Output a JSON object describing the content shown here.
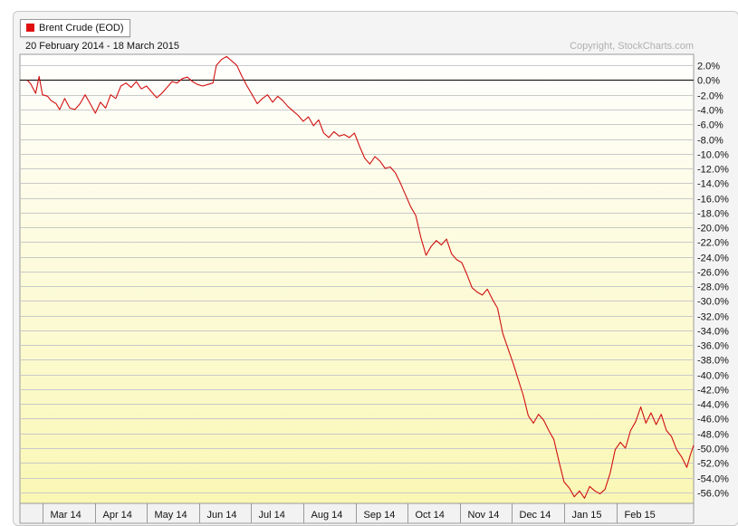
{
  "legend": {
    "label": "Brent Crude (EOD)",
    "color": "#e01010"
  },
  "header": {
    "date_range": "20 February 2014 - 18 March 2015",
    "copyright": "Copyright, StockCharts.com"
  },
  "chart_data": {
    "type": "line",
    "title": "",
    "xlabel": "",
    "ylabel": "",
    "ylim": [
      -57.5,
      3.5
    ],
    "y_ticks": [
      2,
      0,
      -2,
      -4,
      -6,
      -8,
      -10,
      -12,
      -14,
      -16,
      -18,
      -20,
      -22,
      -24,
      -26,
      -28,
      -30,
      -32,
      -34,
      -36,
      -38,
      -40,
      -42,
      -44,
      -46,
      -48,
      -50,
      -52,
      -54,
      -56
    ],
    "y_tick_labels": [
      "2.0%",
      "0.0%",
      "-2.0%",
      "-4.0%",
      "-6.0%",
      "-8.0%",
      "-10.0%",
      "-12.0%",
      "-14.0%",
      "-16.0%",
      "-18.0%",
      "-20.0%",
      "-22.0%",
      "-24.0%",
      "-26.0%",
      "-28.0%",
      "-30.0%",
      "-32.0%",
      "-34.0%",
      "-36.0%",
      "-38.0%",
      "-40.0%",
      "-42.0%",
      "-44.0%",
      "-46.0%",
      "-48.0%",
      "-50.0%",
      "-52.0%",
      "-54.0%",
      "-56.0%"
    ],
    "x_start": "2014-02-20",
    "x_end": "2015-03-18",
    "x_ticks": [
      {
        "date": "2014-03-01",
        "label": "Mar 14"
      },
      {
        "date": "2014-04-01",
        "label": "Apr 14"
      },
      {
        "date": "2014-05-01",
        "label": "May 14"
      },
      {
        "date": "2014-06-01",
        "label": "Jun 14"
      },
      {
        "date": "2014-07-01",
        "label": "Jul 14"
      },
      {
        "date": "2014-08-01",
        "label": "Aug 14"
      },
      {
        "date": "2014-09-01",
        "label": "Sep 14"
      },
      {
        "date": "2014-10-01",
        "label": "Oct 14"
      },
      {
        "date": "2014-11-01",
        "label": "Nov 14"
      },
      {
        "date": "2014-12-01",
        "label": "Dec 14"
      },
      {
        "date": "2015-01-01",
        "label": "Jan 15"
      },
      {
        "date": "2015-02-01",
        "label": "Feb 15"
      }
    ],
    "grid": true,
    "series": [
      {
        "name": "Brent Crude (EOD)",
        "color": "#d01010",
        "points": [
          [
            "2014-02-20",
            0.0
          ],
          [
            "2014-02-22",
            -0.5
          ],
          [
            "2014-02-25",
            -1.8
          ],
          [
            "2014-02-27",
            0.5
          ],
          [
            "2014-03-01",
            -2.0
          ],
          [
            "2014-03-04",
            -2.2
          ],
          [
            "2014-03-06",
            -2.8
          ],
          [
            "2014-03-09",
            -3.2
          ],
          [
            "2014-03-11",
            -4.0
          ],
          [
            "2014-03-14",
            -2.5
          ],
          [
            "2014-03-17",
            -3.8
          ],
          [
            "2014-03-20",
            -4.0
          ],
          [
            "2014-03-23",
            -3.2
          ],
          [
            "2014-03-26",
            -2.0
          ],
          [
            "2014-03-29",
            -3.2
          ],
          [
            "2014-04-01",
            -4.5
          ],
          [
            "2014-04-04",
            -3.0
          ],
          [
            "2014-04-07",
            -3.8
          ],
          [
            "2014-04-10",
            -2.0
          ],
          [
            "2014-04-13",
            -2.5
          ],
          [
            "2014-04-16",
            -0.8
          ],
          [
            "2014-04-19",
            -0.4
          ],
          [
            "2014-04-22",
            -1.0
          ],
          [
            "2014-04-25",
            -0.2
          ],
          [
            "2014-04-28",
            -1.2
          ],
          [
            "2014-05-01",
            -0.8
          ],
          [
            "2014-05-04",
            -1.6
          ],
          [
            "2014-05-07",
            -2.4
          ],
          [
            "2014-05-10",
            -1.8
          ],
          [
            "2014-05-13",
            -1.0
          ],
          [
            "2014-05-16",
            -0.2
          ],
          [
            "2014-05-19",
            -0.4
          ],
          [
            "2014-05-22",
            0.2
          ],
          [
            "2014-05-25",
            0.4
          ],
          [
            "2014-05-28",
            -0.2
          ],
          [
            "2014-05-31",
            -0.6
          ],
          [
            "2014-06-03",
            -0.8
          ],
          [
            "2014-06-06",
            -0.6
          ],
          [
            "2014-06-09",
            -0.4
          ],
          [
            "2014-06-11",
            2.0
          ],
          [
            "2014-06-14",
            2.8
          ],
          [
            "2014-06-17",
            3.2
          ],
          [
            "2014-06-20",
            2.6
          ],
          [
            "2014-06-23",
            2.0
          ],
          [
            "2014-06-26",
            0.5
          ],
          [
            "2014-06-29",
            -0.8
          ],
          [
            "2014-07-02",
            -2.0
          ],
          [
            "2014-07-05",
            -3.2
          ],
          [
            "2014-07-08",
            -2.5
          ],
          [
            "2014-07-11",
            -2.0
          ],
          [
            "2014-07-14",
            -3.0
          ],
          [
            "2014-07-17",
            -2.2
          ],
          [
            "2014-07-20",
            -2.8
          ],
          [
            "2014-07-23",
            -3.6
          ],
          [
            "2014-07-26",
            -4.2
          ],
          [
            "2014-07-29",
            -4.8
          ],
          [
            "2014-08-01",
            -5.6
          ],
          [
            "2014-08-04",
            -5.0
          ],
          [
            "2014-08-07",
            -6.2
          ],
          [
            "2014-08-10",
            -5.4
          ],
          [
            "2014-08-13",
            -7.2
          ],
          [
            "2014-08-16",
            -7.8
          ],
          [
            "2014-08-19",
            -7.0
          ],
          [
            "2014-08-22",
            -7.6
          ],
          [
            "2014-08-25",
            -7.4
          ],
          [
            "2014-08-28",
            -7.8
          ],
          [
            "2014-08-31",
            -7.2
          ],
          [
            "2014-09-03",
            -9.0
          ],
          [
            "2014-09-06",
            -10.6
          ],
          [
            "2014-09-09",
            -11.4
          ],
          [
            "2014-09-12",
            -10.4
          ],
          [
            "2014-09-15",
            -11.0
          ],
          [
            "2014-09-18",
            -12.0
          ],
          [
            "2014-09-21",
            -11.8
          ],
          [
            "2014-09-24",
            -12.6
          ],
          [
            "2014-09-27",
            -14.0
          ],
          [
            "2014-09-30",
            -15.6
          ],
          [
            "2014-10-03",
            -17.2
          ],
          [
            "2014-10-06",
            -18.4
          ],
          [
            "2014-10-09",
            -21.4
          ],
          [
            "2014-10-12",
            -23.8
          ],
          [
            "2014-10-15",
            -22.6
          ],
          [
            "2014-10-18",
            -21.8
          ],
          [
            "2014-10-21",
            -22.4
          ],
          [
            "2014-10-24",
            -21.6
          ],
          [
            "2014-10-27",
            -23.6
          ],
          [
            "2014-10-30",
            -24.4
          ],
          [
            "2014-11-02",
            -24.8
          ],
          [
            "2014-11-05",
            -26.4
          ],
          [
            "2014-11-08",
            -28.2
          ],
          [
            "2014-11-11",
            -28.8
          ],
          [
            "2014-11-14",
            -29.2
          ],
          [
            "2014-11-17",
            -28.4
          ],
          [
            "2014-11-20",
            -29.8
          ],
          [
            "2014-11-23",
            -31.0
          ],
          [
            "2014-11-26",
            -34.4
          ],
          [
            "2014-11-29",
            -36.4
          ],
          [
            "2014-12-02",
            -38.4
          ],
          [
            "2014-12-05",
            -40.6
          ],
          [
            "2014-12-08",
            -42.8
          ],
          [
            "2014-12-11",
            -45.6
          ],
          [
            "2014-12-14",
            -46.6
          ],
          [
            "2014-12-17",
            -45.4
          ],
          [
            "2014-12-20",
            -46.2
          ],
          [
            "2014-12-23",
            -47.6
          ],
          [
            "2014-12-26",
            -48.8
          ],
          [
            "2014-12-29",
            -51.8
          ],
          [
            "2015-01-01",
            -54.6
          ],
          [
            "2015-01-04",
            -55.4
          ],
          [
            "2015-01-07",
            -56.6
          ],
          [
            "2015-01-10",
            -55.8
          ],
          [
            "2015-01-13",
            -56.8
          ],
          [
            "2015-01-16",
            -55.2
          ],
          [
            "2015-01-19",
            -55.8
          ],
          [
            "2015-01-22",
            -56.2
          ],
          [
            "2015-01-25",
            -55.6
          ],
          [
            "2015-01-28",
            -53.4
          ],
          [
            "2015-01-31",
            -50.2
          ],
          [
            "2015-02-03",
            -49.2
          ],
          [
            "2015-02-06",
            -50.0
          ],
          [
            "2015-02-09",
            -47.6
          ],
          [
            "2015-02-12",
            -46.4
          ],
          [
            "2015-02-15",
            -44.4
          ],
          [
            "2015-02-18",
            -46.6
          ],
          [
            "2015-02-21",
            -45.2
          ],
          [
            "2015-02-24",
            -46.8
          ],
          [
            "2015-02-27",
            -45.4
          ],
          [
            "2015-03-02",
            -47.6
          ],
          [
            "2015-03-05",
            -48.4
          ],
          [
            "2015-03-08",
            -50.2
          ],
          [
            "2015-03-11",
            -51.2
          ],
          [
            "2015-03-14",
            -52.6
          ],
          [
            "2015-03-16",
            -51.0
          ],
          [
            "2015-03-18",
            -49.6
          ]
        ]
      }
    ]
  }
}
